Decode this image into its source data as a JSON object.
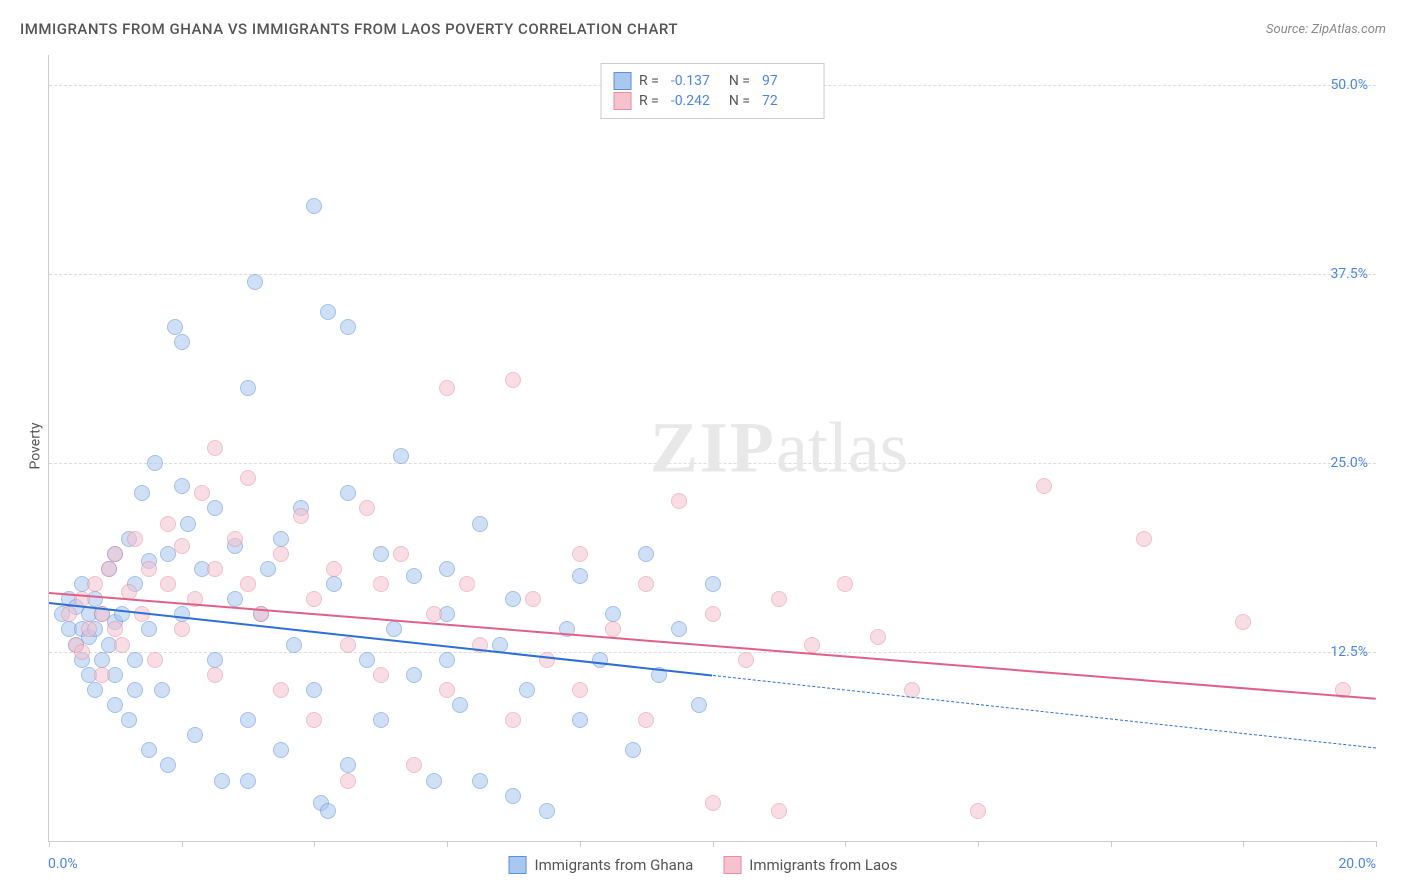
{
  "header": {
    "title": "IMMIGRANTS FROM GHANA VS IMMIGRANTS FROM LAOS POVERTY CORRELATION CHART",
    "source": "Source: ZipAtlas.com"
  },
  "watermark": {
    "zip": "ZIP",
    "atlas": "atlas"
  },
  "chart": {
    "type": "scatter",
    "y_axis_label": "Poverty",
    "xlim": [
      0.0,
      20.0
    ],
    "ylim": [
      0.0,
      52.0
    ],
    "x_tick_labels": {
      "left": "0.0%",
      "right": "20.0%"
    },
    "x_minor_ticks": [
      0,
      2,
      4,
      6,
      8,
      10,
      12,
      14,
      16,
      18,
      20
    ],
    "y_gridlines": [
      12.5,
      25.0,
      37.5,
      50.0
    ],
    "y_tick_labels": [
      "12.5%",
      "25.0%",
      "37.5%",
      "50.0%"
    ],
    "grid_color": "#dddddd",
    "axis_color": "#cccccc",
    "background_color": "#ffffff",
    "tick_label_color": "#4a86e8",
    "point_radius": 8,
    "point_opacity": 0.55,
    "series": [
      {
        "name": "Immigrants from Ghana",
        "fill_color": "#a8c8f0",
        "stroke_color": "#5b8fd6",
        "trend": {
          "x1": 0,
          "y1": 15.8,
          "x2": 10,
          "y2": 11.0,
          "x2_dash": 20,
          "y2_dash": 6.2,
          "color": "#2e6fd6",
          "width": 2
        },
        "R": "-0.137",
        "N": "97",
        "points": [
          [
            0.2,
            15.0
          ],
          [
            0.3,
            14.0
          ],
          [
            0.3,
            16.0
          ],
          [
            0.4,
            13.0
          ],
          [
            0.4,
            15.5
          ],
          [
            0.5,
            12.0
          ],
          [
            0.5,
            14.0
          ],
          [
            0.5,
            17.0
          ],
          [
            0.6,
            11.0
          ],
          [
            0.6,
            13.5
          ],
          [
            0.6,
            15.0
          ],
          [
            0.7,
            10.0
          ],
          [
            0.7,
            14.0
          ],
          [
            0.7,
            16.0
          ],
          [
            0.8,
            12.0
          ],
          [
            0.8,
            15.0
          ],
          [
            0.9,
            18.0
          ],
          [
            0.9,
            13.0
          ],
          [
            1.0,
            14.5
          ],
          [
            1.0,
            11.0
          ],
          [
            1.0,
            19.0
          ],
          [
            1.1,
            15.0
          ],
          [
            1.2,
            20.0
          ],
          [
            1.2,
            8.0
          ],
          [
            1.3,
            17.0
          ],
          [
            1.3,
            12.0
          ],
          [
            1.4,
            23.0
          ],
          [
            1.5,
            18.5
          ],
          [
            1.5,
            6.0
          ],
          [
            1.5,
            14.0
          ],
          [
            1.6,
            25.0
          ],
          [
            1.7,
            10.0
          ],
          [
            1.8,
            19.0
          ],
          [
            1.8,
            5.0
          ],
          [
            1.9,
            34.0
          ],
          [
            2.0,
            15.0
          ],
          [
            2.0,
            33.0
          ],
          [
            2.1,
            21.0
          ],
          [
            2.2,
            7.0
          ],
          [
            2.3,
            18.0
          ],
          [
            2.5,
            12.0
          ],
          [
            2.5,
            22.0
          ],
          [
            2.6,
            4.0
          ],
          [
            2.8,
            16.0
          ],
          [
            2.8,
            19.5
          ],
          [
            3.0,
            30.0
          ],
          [
            3.0,
            8.0
          ],
          [
            3.1,
            37.0
          ],
          [
            3.2,
            15.0
          ],
          [
            3.3,
            18.0
          ],
          [
            3.5,
            6.0
          ],
          [
            3.5,
            20.0
          ],
          [
            3.7,
            13.0
          ],
          [
            3.8,
            22.0
          ],
          [
            4.0,
            42.0
          ],
          [
            4.0,
            10.0
          ],
          [
            4.1,
            2.5
          ],
          [
            4.2,
            35.0
          ],
          [
            4.3,
            17.0
          ],
          [
            4.5,
            5.0
          ],
          [
            4.5,
            23.0
          ],
          [
            4.8,
            12.0
          ],
          [
            5.0,
            19.0
          ],
          [
            5.0,
            8.0
          ],
          [
            5.2,
            14.0
          ],
          [
            5.3,
            25.5
          ],
          [
            5.5,
            11.0
          ],
          [
            5.8,
            4.0
          ],
          [
            6.0,
            15.0
          ],
          [
            6.0,
            18.0
          ],
          [
            6.2,
            9.0
          ],
          [
            6.5,
            21.0
          ],
          [
            6.8,
            13.0
          ],
          [
            7.0,
            3.0
          ],
          [
            7.0,
            16.0
          ],
          [
            7.2,
            10.0
          ],
          [
            7.5,
            2.0
          ],
          [
            7.8,
            14.0
          ],
          [
            8.0,
            8.0
          ],
          [
            8.0,
            17.5
          ],
          [
            8.3,
            12.0
          ],
          [
            8.5,
            15.0
          ],
          [
            8.8,
            6.0
          ],
          [
            9.0,
            19.0
          ],
          [
            9.2,
            11.0
          ],
          [
            9.5,
            14.0
          ],
          [
            9.8,
            9.0
          ],
          [
            10.0,
            17.0
          ],
          [
            4.2,
            2.0
          ],
          [
            4.5,
            34.0
          ],
          [
            1.0,
            9.0
          ],
          [
            1.3,
            10.0
          ],
          [
            2.0,
            23.5
          ],
          [
            3.0,
            4.0
          ],
          [
            5.5,
            17.5
          ],
          [
            6.0,
            12.0
          ],
          [
            6.5,
            4.0
          ]
        ]
      },
      {
        "name": "Immigrants from Laos",
        "fill_color": "#f5c2ce",
        "stroke_color": "#e88ba3",
        "trend": {
          "x1": 0,
          "y1": 16.5,
          "x2": 20,
          "y2": 9.5,
          "color": "#e06088",
          "width": 2
        },
        "R": "-0.242",
        "N": "72",
        "points": [
          [
            0.3,
            15.0
          ],
          [
            0.4,
            13.0
          ],
          [
            0.5,
            16.0
          ],
          [
            0.5,
            12.5
          ],
          [
            0.6,
            14.0
          ],
          [
            0.7,
            17.0
          ],
          [
            0.8,
            15.0
          ],
          [
            0.8,
            11.0
          ],
          [
            0.9,
            18.0
          ],
          [
            1.0,
            14.0
          ],
          [
            1.0,
            19.0
          ],
          [
            1.1,
            13.0
          ],
          [
            1.2,
            16.5
          ],
          [
            1.3,
            20.0
          ],
          [
            1.4,
            15.0
          ],
          [
            1.5,
            18.0
          ],
          [
            1.6,
            12.0
          ],
          [
            1.8,
            21.0
          ],
          [
            1.8,
            17.0
          ],
          [
            2.0,
            19.5
          ],
          [
            2.0,
            14.0
          ],
          [
            2.2,
            16.0
          ],
          [
            2.3,
            23.0
          ],
          [
            2.5,
            18.0
          ],
          [
            2.5,
            11.0
          ],
          [
            2.8,
            20.0
          ],
          [
            3.0,
            17.0
          ],
          [
            3.0,
            24.0
          ],
          [
            3.2,
            15.0
          ],
          [
            3.5,
            19.0
          ],
          [
            3.5,
            10.0
          ],
          [
            3.8,
            21.5
          ],
          [
            4.0,
            16.0
          ],
          [
            4.0,
            8.0
          ],
          [
            4.3,
            18.0
          ],
          [
            4.5,
            13.0
          ],
          [
            4.8,
            22.0
          ],
          [
            5.0,
            17.0
          ],
          [
            5.0,
            11.0
          ],
          [
            5.3,
            19.0
          ],
          [
            5.5,
            5.0
          ],
          [
            5.8,
            15.0
          ],
          [
            6.0,
            30.0
          ],
          [
            6.0,
            10.0
          ],
          [
            6.3,
            17.0
          ],
          [
            6.5,
            13.0
          ],
          [
            7.0,
            30.5
          ],
          [
            7.0,
            8.0
          ],
          [
            7.3,
            16.0
          ],
          [
            7.5,
            12.0
          ],
          [
            8.0,
            19.0
          ],
          [
            8.0,
            10.0
          ],
          [
            8.5,
            14.0
          ],
          [
            9.0,
            17.0
          ],
          [
            9.0,
            8.0
          ],
          [
            9.5,
            22.5
          ],
          [
            10.0,
            2.5
          ],
          [
            10.0,
            15.0
          ],
          [
            10.5,
            12.0
          ],
          [
            11.0,
            16.0
          ],
          [
            11.0,
            2.0
          ],
          [
            11.5,
            13.0
          ],
          [
            12.0,
            17.0
          ],
          [
            12.5,
            13.5
          ],
          [
            13.0,
            10.0
          ],
          [
            14.0,
            2.0
          ],
          [
            15.0,
            23.5
          ],
          [
            16.5,
            20.0
          ],
          [
            18.0,
            14.5
          ],
          [
            19.5,
            10.0
          ],
          [
            2.5,
            26.0
          ],
          [
            4.5,
            4.0
          ]
        ]
      }
    ]
  },
  "legend_top": {
    "R_label": "R =",
    "N_label": "N ="
  },
  "legend_bottom": [
    {
      "label": "Immigrants from Ghana",
      "fill": "#a8c8f0",
      "stroke": "#5b8fd6"
    },
    {
      "label": "Immigrants from Laos",
      "fill": "#f5c2ce",
      "stroke": "#e88ba3"
    }
  ]
}
